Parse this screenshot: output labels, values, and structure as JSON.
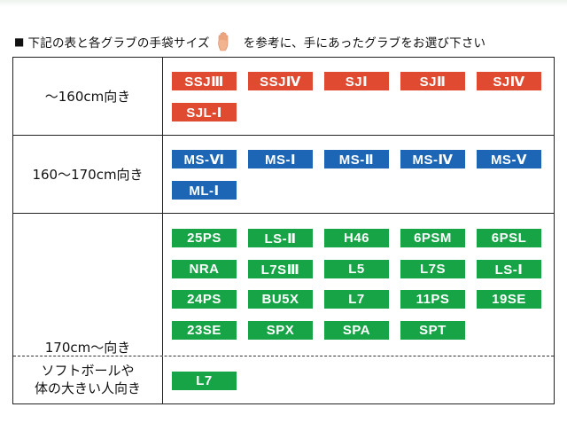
{
  "header": {
    "prefix": "■",
    "text_before": "下記の表と各グラブの手袋サイズ",
    "text_after": "を参考に、手にあったグラブをお選び下さい",
    "hand_icon": "hand-size-icon"
  },
  "rows": [
    {
      "label": "〜160cm向き",
      "color": "#e04a31",
      "items": [
        "SSJⅢ",
        "SSJⅣ",
        "SJⅠ",
        "SJⅡ",
        "SJⅣ",
        "SJL-Ⅰ"
      ]
    },
    {
      "label": "160〜170cm向き",
      "color": "#1d66b5",
      "items": [
        "MS-Ⅵ",
        "MS-Ⅰ",
        "MS-Ⅱ",
        "MS-Ⅳ",
        "MS-Ⅴ",
        "ML-Ⅰ"
      ]
    },
    {
      "label": "170cm〜向き",
      "color": "#16a446",
      "items": [
        "25PS",
        "LS-Ⅱ",
        "H46",
        "6PSM",
        "6PSL",
        "NRA",
        "L7SⅢ",
        "L5",
        "L7S",
        "LS-Ⅰ",
        "24PS",
        "BU5X",
        "L7",
        "11PS",
        "19SE",
        "23SE",
        "SPX",
        "SPA",
        "SPT"
      ]
    },
    {
      "label_line1": "ソフトボールや",
      "label_line2": "体の大きい人向き",
      "color": "#16a446",
      "items": [
        "L7"
      ]
    }
  ]
}
